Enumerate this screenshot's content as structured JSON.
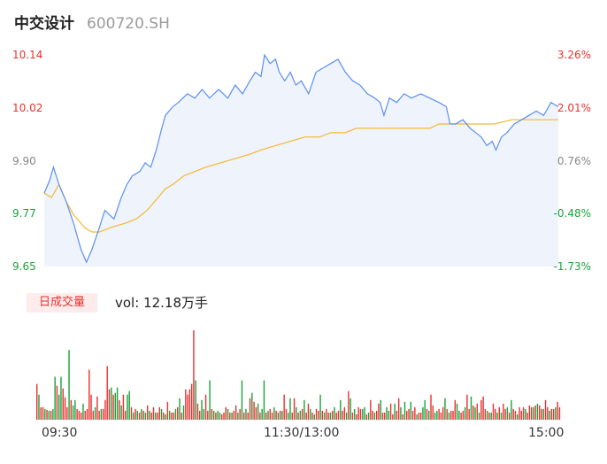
{
  "header": {
    "name": "中交设计",
    "code": "600720.SH"
  },
  "volume_panel": {
    "badge": "日成交量",
    "text": "vol: 12.18万手"
  },
  "colors": {
    "price_line": "#5b8ff0",
    "price_fill": "#eef3fc",
    "avg_line": "#f5b830",
    "up": "#e8312f",
    "down": "#1aa33a",
    "neutral": "#888888"
  },
  "chart_data": [
    {
      "type": "line",
      "title": "",
      "xlabel": "",
      "ylabel": "",
      "x_ticks": [
        "09:30",
        "11:30/13:00",
        "15:00"
      ],
      "y_ticks": [
        "10.14",
        "10.02",
        "9.90",
        "9.77",
        "9.65"
      ],
      "y2_ticks": [
        "3.26%",
        "2.01%",
        "0.76%",
        "-0.48%",
        "-1.73%"
      ],
      "ylim": [
        9.65,
        10.14
      ],
      "prev_close": 9.82,
      "grid": false,
      "series": [
        {
          "role": "price",
          "points": [
            [
              0,
              9.82
            ],
            [
              3,
              9.85
            ],
            [
              5,
              9.88
            ],
            [
              8,
              9.84
            ],
            [
              12,
              9.8
            ],
            [
              16,
              9.75
            ],
            [
              20,
              9.69
            ],
            [
              23,
              9.66
            ],
            [
              26,
              9.69
            ],
            [
              30,
              9.74
            ],
            [
              33,
              9.78
            ],
            [
              38,
              9.76
            ],
            [
              42,
              9.81
            ],
            [
              45,
              9.84
            ],
            [
              48,
              9.86
            ],
            [
              52,
              9.87
            ],
            [
              55,
              9.89
            ],
            [
              58,
              9.88
            ],
            [
              61,
              9.92
            ],
            [
              64,
              9.97
            ],
            [
              66,
              10.0
            ],
            [
              70,
              10.02
            ],
            [
              73,
              10.03
            ],
            [
              78,
              10.05
            ],
            [
              82,
              10.04
            ],
            [
              86,
              10.06
            ],
            [
              90,
              10.04
            ],
            [
              95,
              10.06
            ],
            [
              100,
              10.04
            ],
            [
              104,
              10.07
            ],
            [
              108,
              10.05
            ],
            [
              112,
              10.08
            ],
            [
              115,
              10.1
            ],
            [
              118,
              10.09
            ],
            [
              120,
              10.14
            ],
            [
              123,
              10.12
            ],
            [
              126,
              10.13
            ],
            [
              128,
              10.1
            ],
            [
              131,
              10.08
            ],
            [
              134,
              10.1
            ],
            [
              137,
              10.07
            ],
            [
              140,
              10.08
            ],
            [
              144,
              10.05
            ],
            [
              148,
              10.1
            ],
            [
              152,
              10.11
            ],
            [
              156,
              10.12
            ],
            [
              160,
              10.13
            ],
            [
              164,
              10.1
            ],
            [
              168,
              10.08
            ],
            [
              172,
              10.07
            ],
            [
              176,
              10.05
            ],
            [
              180,
              10.04
            ],
            [
              183,
              10.03
            ],
            [
              185,
              10.0
            ],
            [
              188,
              10.04
            ],
            [
              192,
              10.03
            ],
            [
              196,
              10.05
            ],
            [
              200,
              10.04
            ],
            [
              205,
              10.05
            ],
            [
              210,
              10.04
            ],
            [
              215,
              10.03
            ],
            [
              219,
              10.02
            ],
            [
              221,
              9.98
            ],
            [
              224,
              9.98
            ],
            [
              228,
              9.99
            ],
            [
              232,
              9.97
            ],
            [
              235,
              9.96
            ],
            [
              238,
              9.95
            ],
            [
              241,
              9.93
            ],
            [
              244,
              9.94
            ],
            [
              246,
              9.92
            ],
            [
              249,
              9.95
            ],
            [
              252,
              9.96
            ],
            [
              256,
              9.98
            ],
            [
              260,
              9.99
            ],
            [
              264,
              10.0
            ],
            [
              268,
              10.01
            ],
            [
              272,
              10.0
            ],
            [
              276,
              10.03
            ],
            [
              280,
              10.02
            ]
          ],
          "values_note": ""
        },
        {
          "role": "average",
          "points": [
            [
              0,
              9.82
            ],
            [
              4,
              9.81
            ],
            [
              8,
              9.84
            ],
            [
              12,
              9.8
            ],
            [
              16,
              9.77
            ],
            [
              22,
              9.74
            ],
            [
              26,
              9.73
            ],
            [
              30,
              9.73
            ],
            [
              36,
              9.74
            ],
            [
              44,
              9.75
            ],
            [
              50,
              9.76
            ],
            [
              56,
              9.78
            ],
            [
              62,
              9.81
            ],
            [
              66,
              9.83
            ],
            [
              70,
              9.84
            ],
            [
              76,
              9.86
            ],
            [
              82,
              9.87
            ],
            [
              88,
              9.88
            ],
            [
              96,
              9.89
            ],
            [
              104,
              9.9
            ],
            [
              112,
              9.91
            ],
            [
              118,
              9.92
            ],
            [
              126,
              9.93
            ],
            [
              134,
              9.94
            ],
            [
              142,
              9.95
            ],
            [
              150,
              9.95
            ],
            [
              156,
              9.96
            ],
            [
              164,
              9.96
            ],
            [
              170,
              9.97
            ],
            [
              180,
              9.97
            ],
            [
              190,
              9.97
            ],
            [
              200,
              9.97
            ],
            [
              210,
              9.97
            ],
            [
              215,
              9.98
            ],
            [
              225,
              9.98
            ],
            [
              235,
              9.98
            ],
            [
              245,
              9.98
            ],
            [
              255,
              9.99
            ],
            [
              265,
              9.99
            ],
            [
              275,
              9.99
            ],
            [
              280,
              9.99
            ]
          ]
        }
      ]
    },
    {
      "type": "bar",
      "title": "",
      "xlabel": "",
      "ylabel": "",
      "values": [
        40,
        28,
        14,
        14,
        12,
        11,
        10,
        10,
        12,
        48,
        38,
        28,
        48,
        35,
        25,
        14,
        78,
        22,
        16,
        22,
        12,
        10,
        8,
        18,
        10,
        12,
        56,
        28,
        10,
        14,
        26,
        10,
        12,
        12,
        22,
        60,
        34,
        36,
        28,
        30,
        36,
        22,
        16,
        28,
        10,
        28,
        32,
        14,
        8,
        12,
        10,
        8,
        12,
        10,
        8,
        16,
        10,
        8,
        14,
        8,
        8,
        14,
        12,
        8,
        6,
        20,
        10,
        8,
        8,
        12,
        14,
        24,
        8,
        16,
        34,
        28,
        34,
        40,
        100,
        44,
        18,
        10,
        22,
        12,
        28,
        10,
        44,
        12,
        10,
        8,
        10,
        8,
        6,
        8,
        14,
        12,
        8,
        8,
        10,
        16,
        8,
        12,
        44,
        8,
        12,
        8,
        24,
        30,
        20,
        14,
        18,
        8,
        12,
        44,
        8,
        10,
        12,
        8,
        14,
        10,
        8,
        10,
        10,
        28,
        12,
        8,
        24,
        8,
        24,
        14,
        8,
        10,
        12,
        22,
        8,
        18,
        12,
        8,
        6,
        12,
        10,
        28,
        10,
        8,
        12,
        8,
        8,
        10,
        14,
        8,
        10,
        22,
        10,
        14,
        8,
        32,
        24,
        8,
        12,
        6,
        14,
        12,
        12,
        14,
        6,
        8,
        22,
        10,
        8,
        10,
        18,
        22,
        8,
        8,
        14,
        10,
        18,
        6,
        18,
        10,
        24,
        14,
        6,
        20,
        10,
        12,
        20,
        10,
        14,
        6,
        8,
        8,
        14,
        22,
        12,
        10,
        28,
        16,
        8,
        10,
        12,
        8,
        14,
        24,
        12,
        8,
        10,
        10,
        22,
        18,
        10,
        8,
        10,
        14,
        28,
        12,
        26,
        16,
        14,
        18,
        8,
        22,
        26,
        12,
        10,
        8,
        8,
        18,
        12,
        8,
        14,
        8,
        18,
        12,
        14,
        8,
        22,
        12,
        10,
        6,
        14,
        10,
        14,
        12,
        8,
        16,
        14,
        14,
        16,
        18,
        16,
        12,
        12,
        22,
        14,
        10,
        12,
        12,
        14,
        20,
        14
      ],
      "colors": [
        "u",
        "d",
        "u",
        "u",
        "d",
        "u",
        "d",
        "u",
        "d",
        "d",
        "u",
        "d",
        "d",
        "u",
        "u",
        "u",
        "d",
        "u",
        "d",
        "d",
        "u",
        "u",
        "u",
        "d",
        "u",
        "u",
        "u",
        "u",
        "u",
        "d",
        "u",
        "u",
        "d",
        "u",
        "u",
        "u",
        "u",
        "d",
        "u",
        "d",
        "d",
        "u",
        "d",
        "u",
        "u",
        "d",
        "d",
        "u",
        "d",
        "u",
        "d",
        "u",
        "d",
        "u",
        "d",
        "u",
        "d",
        "u",
        "u",
        "d",
        "u",
        "u",
        "d",
        "u",
        "d",
        "u",
        "d",
        "u",
        "u",
        "d",
        "u",
        "d",
        "u",
        "d",
        "u",
        "u",
        "u",
        "u",
        "u",
        "d",
        "u",
        "u",
        "d",
        "d",
        "u",
        "u",
        "d",
        "u",
        "d",
        "u",
        "d",
        "d",
        "u",
        "u",
        "u",
        "d",
        "u",
        "d",
        "u",
        "u",
        "d",
        "u",
        "d",
        "u",
        "d",
        "u",
        "u",
        "d",
        "u",
        "u",
        "d",
        "u",
        "d",
        "d",
        "u",
        "d",
        "u",
        "u",
        "d",
        "u",
        "d",
        "u",
        "d",
        "u",
        "u",
        "d",
        "d",
        "u",
        "u",
        "d",
        "u",
        "d",
        "u",
        "d",
        "u",
        "u",
        "d",
        "u",
        "d",
        "u",
        "u",
        "d",
        "u",
        "d",
        "u",
        "u",
        "d",
        "u",
        "d",
        "u",
        "u",
        "d",
        "u",
        "u",
        "d",
        "u",
        "d",
        "u",
        "d",
        "u",
        "u",
        "u",
        "d",
        "d",
        "u",
        "d",
        "u",
        "u",
        "d",
        "u",
        "u",
        "d",
        "u",
        "u",
        "d",
        "d",
        "u",
        "u",
        "d",
        "u",
        "u",
        "d",
        "u",
        "d",
        "u",
        "u",
        "d",
        "u",
        "u",
        "d",
        "u",
        "u",
        "d",
        "d",
        "u",
        "d",
        "u",
        "u",
        "d",
        "d",
        "u",
        "u",
        "u",
        "d",
        "u",
        "d",
        "u",
        "u",
        "u",
        "d",
        "d",
        "u",
        "u",
        "d",
        "u",
        "u",
        "d",
        "u",
        "d",
        "u",
        "d",
        "u",
        "u",
        "u",
        "d",
        "u",
        "d",
        "u",
        "u",
        "d",
        "u",
        "d",
        "u",
        "u",
        "d",
        "u",
        "d",
        "u",
        "u",
        "d",
        "u",
        "u",
        "u",
        "d",
        "u",
        "u",
        "u",
        "d",
        "u",
        "d",
        "u",
        "u",
        "d",
        "u",
        "u",
        "d",
        "u",
        "u",
        "d",
        "u",
        "u",
        "u",
        "d",
        "u",
        "u",
        "d",
        "u",
        "n"
      ]
    }
  ]
}
